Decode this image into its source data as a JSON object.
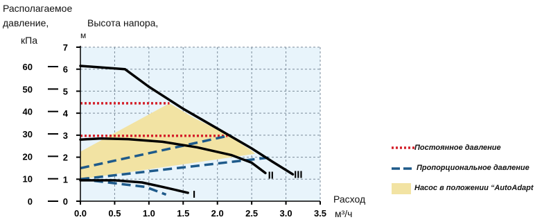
{
  "chart_data": {
    "type": "line",
    "ylabel_left": [
      "Располагаемое",
      "давление,"
    ],
    "ylabel_left_unit": "кПа",
    "ylabel_right": [
      "Высота напора,",
      "м"
    ],
    "xlabel": "Расход",
    "xlabel_unit": "м³/ч",
    "xlim": [
      0,
      3.5
    ],
    "ylim": [
      0,
      7
    ],
    "x_ticks": [
      "0.0",
      "0.5",
      "1.0",
      "1.5",
      "2.0",
      "2.5",
      "3.0",
      "3.5"
    ],
    "y_ticks_m": [
      "0",
      "1",
      "2",
      "3",
      "4",
      "5",
      "6",
      "7"
    ],
    "y_ticks_kpa": [
      "0",
      "10",
      "20",
      "30",
      "40",
      "50",
      "60"
    ],
    "grid": true,
    "colors": {
      "curve": "#000000",
      "constant": "#d4202a",
      "proportional": "#1e5a8a",
      "auto_adapt": "#f2e3a3",
      "grid": "#7a8a99"
    },
    "curves": [
      {
        "label": "I",
        "points": [
          [
            0.0,
            0.95
          ],
          [
            0.5,
            0.95
          ],
          [
            0.9,
            0.85
          ],
          [
            1.2,
            0.65
          ],
          [
            1.57,
            0.38
          ]
        ]
      },
      {
        "label": "II",
        "points": [
          [
            0.0,
            2.8
          ],
          [
            0.3,
            2.85
          ],
          [
            0.7,
            2.82
          ],
          [
            1.2,
            2.7
          ],
          [
            1.7,
            2.45
          ],
          [
            2.2,
            2.1
          ],
          [
            2.5,
            1.75
          ],
          [
            2.7,
            1.28
          ]
        ]
      },
      {
        "label": "III",
        "points": [
          [
            0.0,
            6.15
          ],
          [
            0.65,
            6.0
          ],
          [
            1.0,
            5.2
          ],
          [
            1.5,
            4.2
          ],
          [
            2.0,
            3.3
          ],
          [
            2.5,
            2.4
          ],
          [
            2.8,
            1.8
          ],
          [
            3.1,
            1.22
          ]
        ]
      }
    ],
    "constant_pressure": [
      {
        "points": [
          [
            0.0,
            4.45
          ],
          [
            1.3,
            4.45
          ]
        ]
      },
      {
        "points": [
          [
            0.0,
            2.97
          ],
          [
            2.15,
            2.97
          ]
        ]
      }
    ],
    "proportional_pressure": [
      {
        "points": [
          [
            0.0,
            1.0
          ],
          [
            0.95,
            0.65
          ],
          [
            1.25,
            0.3
          ]
        ]
      },
      {
        "points": [
          [
            0.0,
            1.5
          ],
          [
            2.2,
            3.0
          ]
        ]
      },
      {
        "points": [
          [
            0.0,
            1.0
          ],
          [
            2.8,
            2.0
          ]
        ]
      }
    ],
    "auto_adapt_region": [
      [
        0.0,
        2.25
      ],
      [
        1.3,
        4.45
      ],
      [
        1.65,
        3.8
      ],
      [
        2.1,
        3.1
      ],
      [
        2.5,
        2.3
      ],
      [
        2.55,
        2.15
      ],
      [
        0.0,
        1.0
      ]
    ],
    "legend": {
      "placement": "right",
      "items": [
        {
          "key": "constant",
          "label": "Постоянное давление"
        },
        {
          "key": "proportional",
          "label": "Пропорциональное давление"
        },
        {
          "key": "auto_adapt",
          "label": "Насос в положении “AutoAdapt"
        }
      ]
    }
  }
}
